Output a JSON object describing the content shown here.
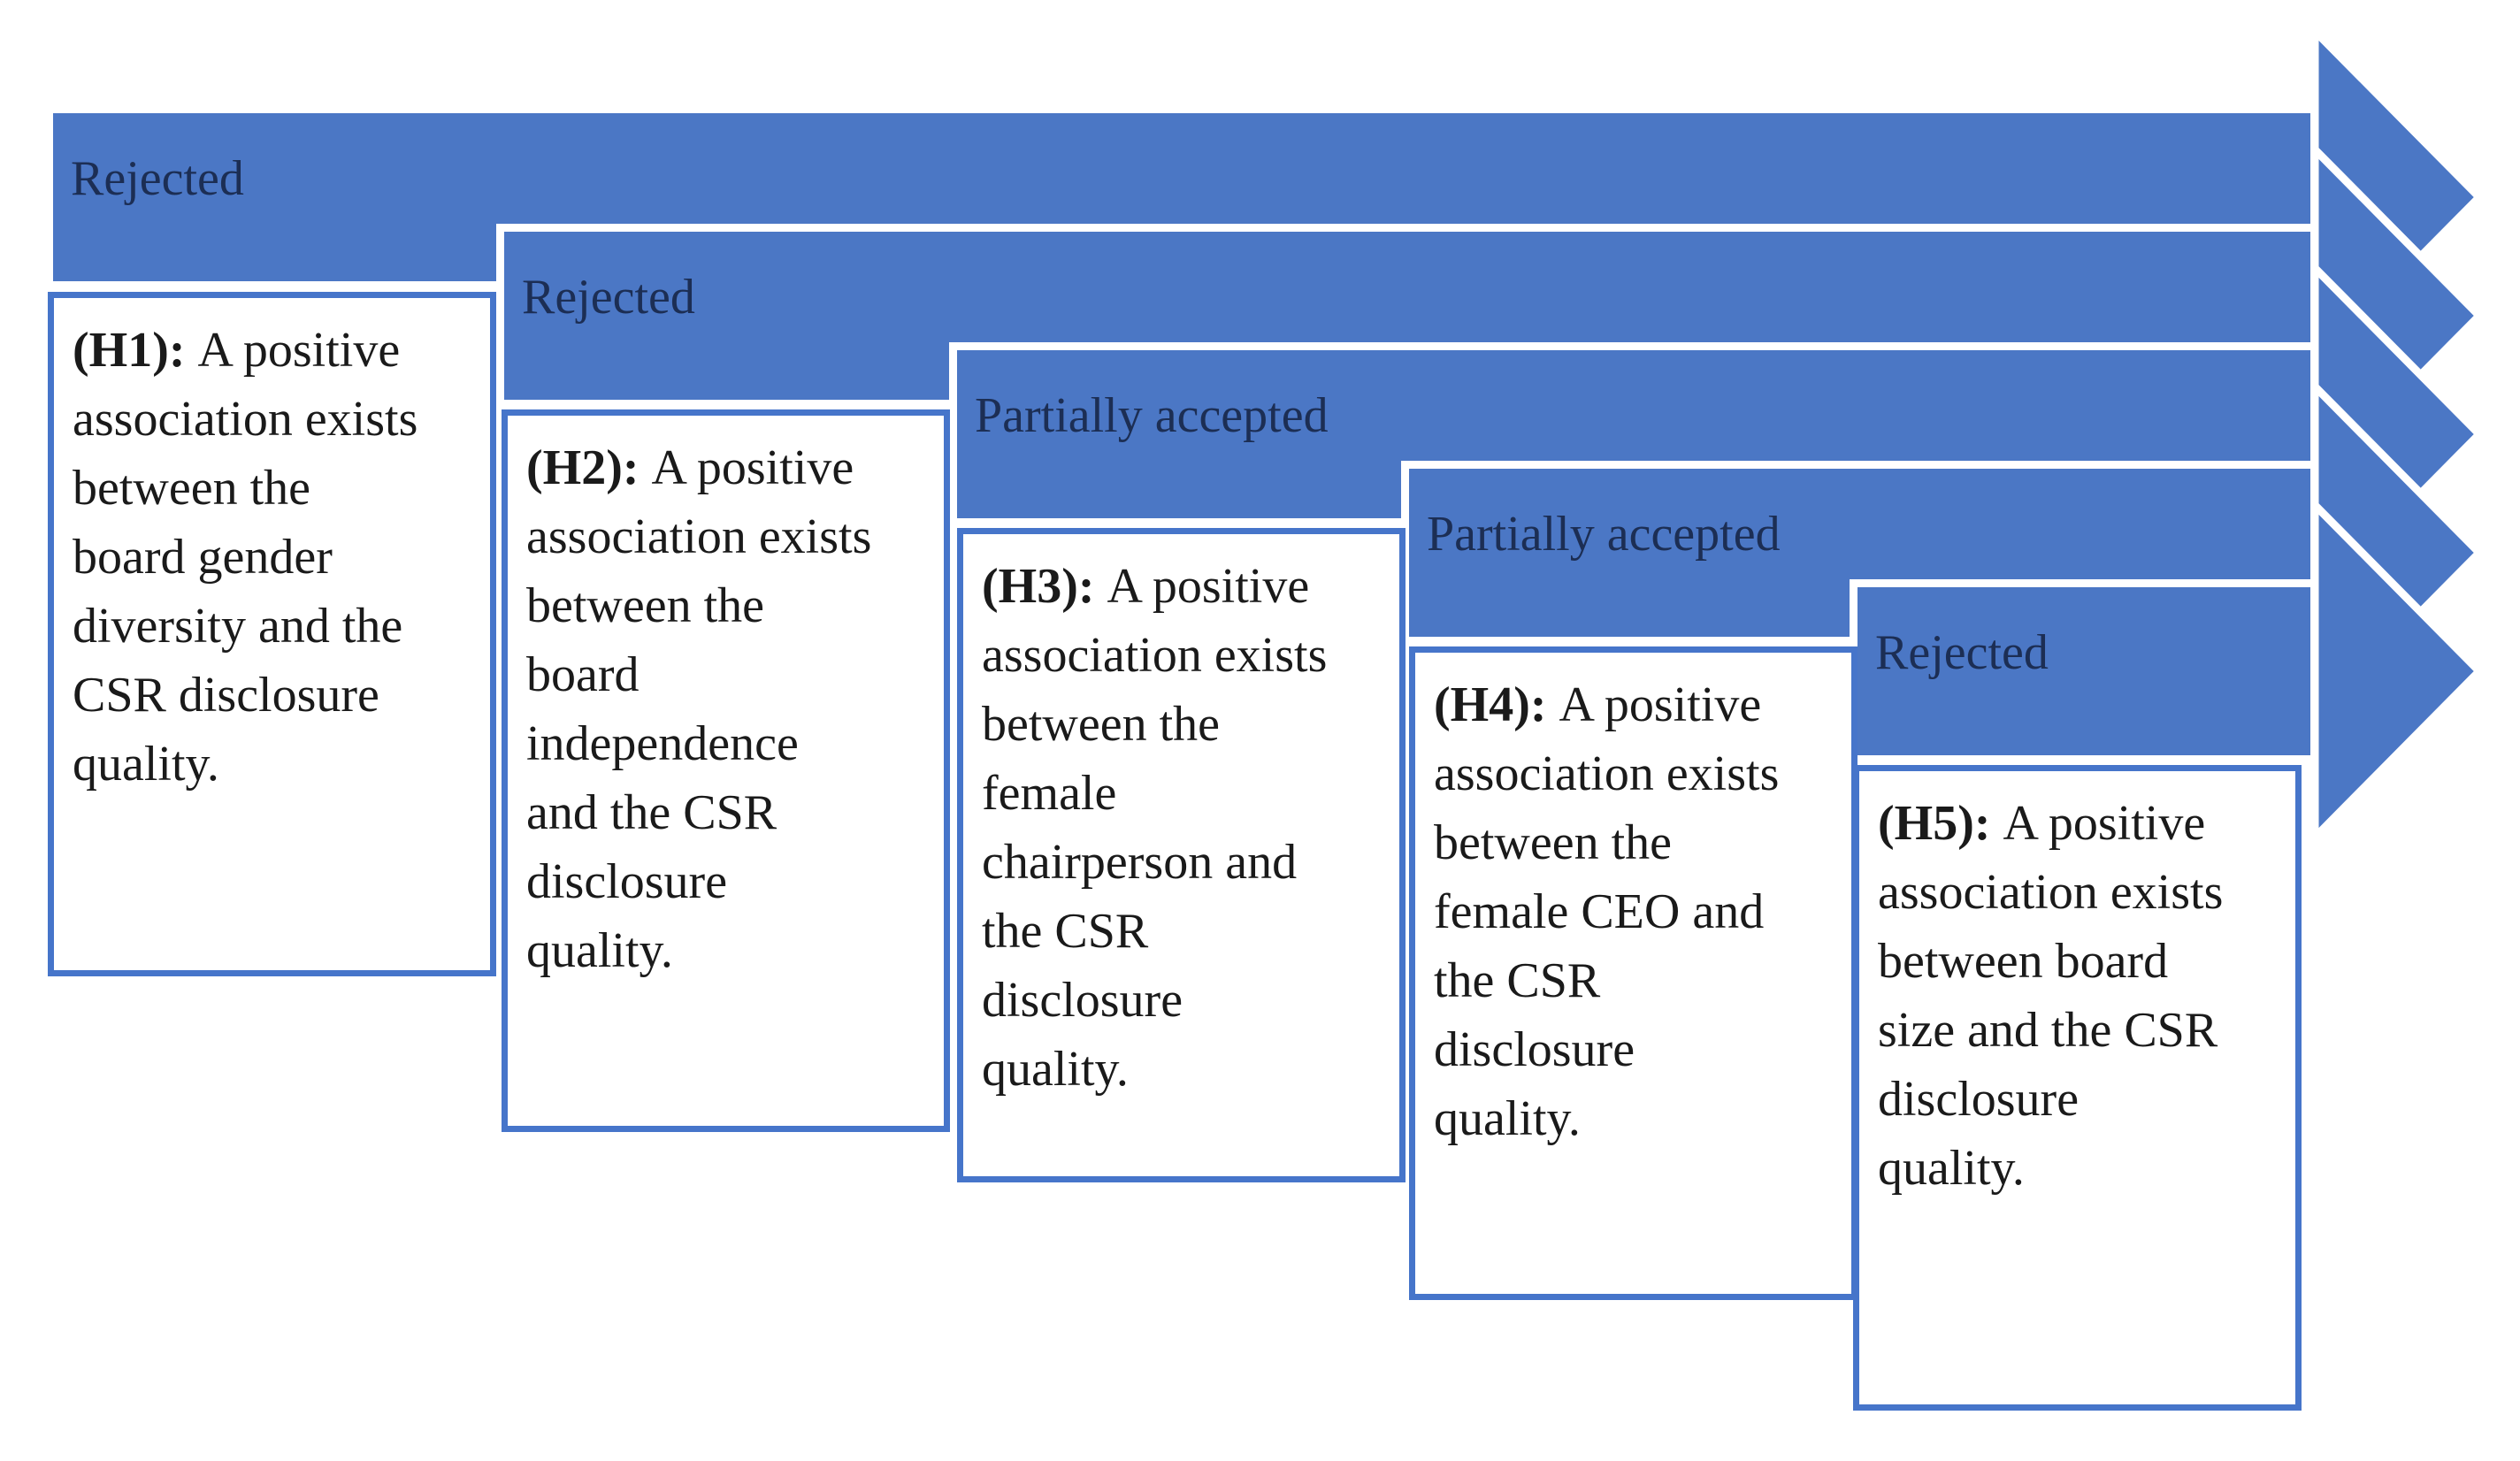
{
  "hypotheses": [
    {
      "id": "H1",
      "verdict": "Rejected",
      "tag": "(H1):",
      "lines": [
        "A positive",
        "association exists",
        "between the",
        "board gender",
        "diversity and the",
        "CSR disclosure",
        "quality."
      ],
      "text": "(H1): A positive association exists between the board gender diversity and the CSR disclosure quality."
    },
    {
      "id": "H2",
      "verdict": "Rejected",
      "tag": "(H2):",
      "lines": [
        "A positive",
        "association exists",
        "between the",
        "board",
        "independence",
        "and the CSR",
        "disclosure",
        "quality."
      ],
      "text": "(H2): A positive association exists between the board independence and the CSR disclosure quality."
    },
    {
      "id": "H3",
      "verdict": "Partially accepted",
      "tag": "(H3):",
      "lines": [
        "A positive",
        "association exists",
        "between the",
        "female",
        "chairperson and",
        "the CSR",
        "disclosure",
        "quality."
      ],
      "text": "(H3): A positive association exists between the female chairperson and the CSR disclosure quality."
    },
    {
      "id": "H4",
      "verdict": "Partially accepted",
      "tag": "(H4):",
      "lines": [
        "A positive",
        "association exists",
        "between the",
        "female CEO and",
        "the CSR",
        "disclosure",
        "quality."
      ],
      "text": "(H4): A positive association exists between the female CEO and the CSR disclosure quality."
    },
    {
      "id": "H5",
      "verdict": "Rejected",
      "tag": "(H5):",
      "lines": [
        "A positive",
        "association exists",
        "between board",
        "size and the CSR",
        "disclosure",
        "quality."
      ],
      "text": "(H5): A positive association exists between board size and the CSR disclosure quality."
    }
  ],
  "colors": {
    "arrow_fill": "#4b77c5",
    "arrow_outline": "#ffffff",
    "box_border": "#4675ca",
    "verdict_text": "#1c2e54",
    "body_text": "#1a1a1a",
    "background": "#ffffff"
  }
}
